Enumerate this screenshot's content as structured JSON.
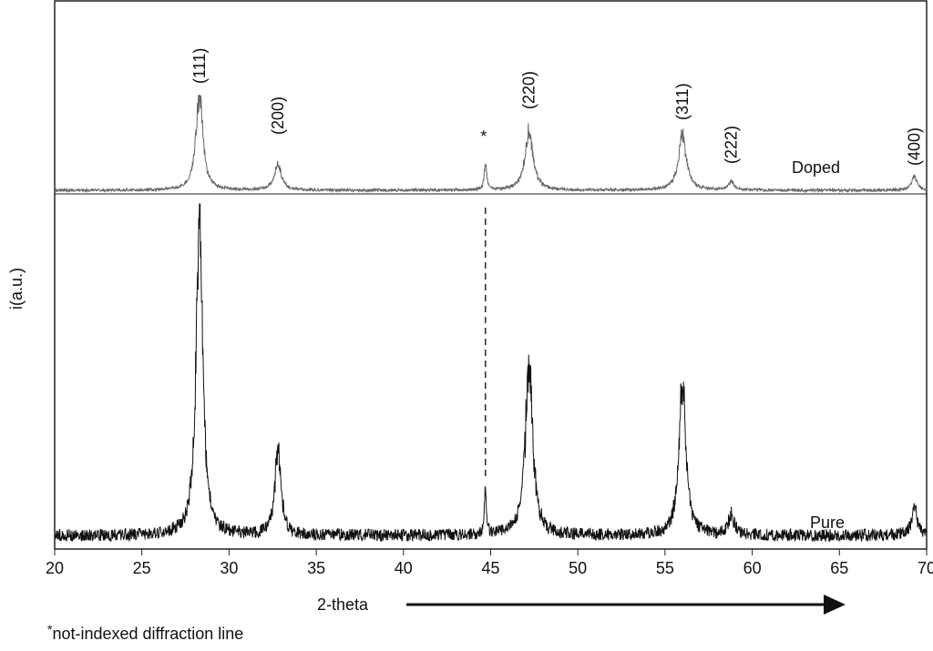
{
  "chart_data": {
    "type": "line",
    "title": "",
    "xlabel": "2-theta",
    "ylabel": "i(a.u.)",
    "xlim": [
      20,
      70
    ],
    "x_ticks": [
      "20",
      "25",
      "30",
      "35",
      "40",
      "45",
      "50",
      "55",
      "60",
      "65",
      "70"
    ],
    "grid": false,
    "footnote": {
      "marker": "*",
      "text": "not-indexed diffraction line"
    },
    "not_indexed_marker": {
      "symbol": "*",
      "x": 44.7
    },
    "peak_labels": [
      {
        "text": "(111)",
        "x": 28.3
      },
      {
        "text": "(200)",
        "x": 32.8
      },
      {
        "text": "(220)",
        "x": 47.2
      },
      {
        "text": "(311)",
        "x": 56.0
      },
      {
        "text": "(222)",
        "x": 58.8
      },
      {
        "text": "(400)",
        "x": 69.3
      }
    ],
    "series": [
      {
        "name": "Doped",
        "color": "#666666",
        "baseline": 4,
        "noise": 2,
        "peaks": [
          {
            "x": 28.3,
            "height": 100,
            "width": 0.35
          },
          {
            "x": 32.8,
            "height": 28,
            "width": 0.35
          },
          {
            "x": 44.7,
            "height": 30,
            "width": 0.12
          },
          {
            "x": 47.2,
            "height": 62,
            "width": 0.4
          },
          {
            "x": 56.0,
            "height": 58,
            "width": 0.4
          },
          {
            "x": 58.8,
            "height": 9,
            "width": 0.3
          },
          {
            "x": 69.3,
            "height": 14,
            "width": 0.3
          }
        ]
      },
      {
        "name": "Pure",
        "color": "#111111",
        "baseline": 4,
        "noise": 2.5,
        "peaks": [
          {
            "x": 28.3,
            "height": 100,
            "width": 0.32
          },
          {
            "x": 32.8,
            "height": 27,
            "width": 0.3
          },
          {
            "x": 44.7,
            "height": 13,
            "width": 0.12
          },
          {
            "x": 47.2,
            "height": 51,
            "width": 0.38
          },
          {
            "x": 56.0,
            "height": 46,
            "width": 0.35
          },
          {
            "x": 58.8,
            "height": 6,
            "width": 0.3
          },
          {
            "x": 69.3,
            "height": 8,
            "width": 0.3
          }
        ]
      }
    ]
  }
}
